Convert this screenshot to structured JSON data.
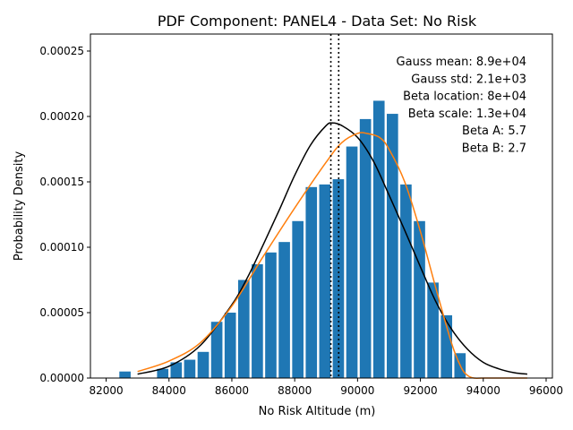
{
  "chart_data": {
    "type": "bar",
    "title": "PDF Component: PANEL4 - Data Set: No Risk",
    "xlabel": "No Risk Altitude (m)",
    "ylabel": "Probability Density",
    "xlim": [
      81500,
      96200
    ],
    "ylim": [
      0,
      0.000263
    ],
    "x_ticks": [
      82000,
      84000,
      86000,
      88000,
      90000,
      92000,
      94000,
      96000
    ],
    "x_tick_labels": [
      "82000",
      "84000",
      "86000",
      "88000",
      "90000",
      "92000",
      "94000",
      "96000"
    ],
    "y_ticks": [
      0,
      5e-05,
      0.0001,
      0.00015,
      0.0002,
      0.00025
    ],
    "y_tick_labels": [
      "0.00000",
      "0.00005",
      "0.00010",
      "0.00015",
      "0.00020",
      "0.00025"
    ],
    "bar_width": 360,
    "bars": {
      "color": "#1f77b4",
      "x": [
        82600,
        83800,
        84230,
        84660,
        85090,
        85520,
        85950,
        86380,
        86810,
        87240,
        87670,
        88100,
        88530,
        88960,
        89390,
        89820,
        90250,
        90680,
        91110,
        91540,
        91970,
        92400,
        92830,
        93260
      ],
      "values": [
        5e-06,
        7e-06,
        1.2e-05,
        1.4e-05,
        2e-05,
        4.3e-05,
        5e-05,
        7.5e-05,
        8.7e-05,
        9.6e-05,
        0.000104,
        0.00012,
        0.000146,
        0.000148,
        0.000152,
        0.000177,
        0.000198,
        0.000212,
        0.000202,
        0.000148,
        0.00012,
        7.3e-05,
        4.8e-05,
        1.9e-05
      ]
    },
    "series": [
      {
        "color": "#000000",
        "x": [
          83000,
          84000,
          85000,
          86000,
          86500,
          87000,
          87500,
          88000,
          88500,
          89000,
          89200,
          89500,
          90000,
          90500,
          91000,
          91500,
          92000,
          92500,
          93000,
          93500,
          94000,
          94500,
          95000,
          95400
        ],
        "values": [
          3e-06,
          9e-06,
          2.5e-05,
          5.6e-05,
          7.7e-05,
          0.000102,
          0.000128,
          0.000155,
          0.000178,
          0.000193,
          0.000195,
          0.000193,
          0.000184,
          0.000166,
          0.00014,
          0.000113,
          8.5e-05,
          5.8e-05,
          3.7e-05,
          2.2e-05,
          1.2e-05,
          7e-06,
          4e-06,
          3e-06
        ]
      },
      {
        "color": "#ff7f0e",
        "x": [
          83000,
          84000,
          85000,
          86000,
          87000,
          88000,
          89000,
          89500,
          90000,
          90300,
          90700,
          91000,
          91500,
          92000,
          92500,
          93000,
          93300,
          93500,
          93700,
          94000,
          94500,
          95000,
          95400
        ],
        "values": [
          5e-06,
          1.3e-05,
          2.7e-05,
          5.5e-05,
          9.3e-05,
          0.00013,
          0.000165,
          0.00018,
          0.000187,
          0.000187,
          0.000184,
          0.000175,
          0.00015,
          0.000112,
          6.8e-05,
          2.6e-05,
          8e-06,
          2e-06,
          0.0,
          0.0,
          0.0,
          0.0,
          0.0
        ]
      }
    ],
    "vlines": [
      {
        "x": 89150,
        "style": "dotted",
        "color": "#000000"
      },
      {
        "x": 89400,
        "style": "dotted",
        "color": "#000000"
      }
    ],
    "annotations": [
      "Gauss mean: 8.9e+04",
      "Gauss std: 2.1e+03",
      "Beta location: 8e+04",
      "Beta scale: 1.3e+04",
      "Beta A: 5.7",
      "Beta B: 2.7"
    ],
    "annotation_placement": "top-right",
    "grid": false,
    "legend": false
  }
}
